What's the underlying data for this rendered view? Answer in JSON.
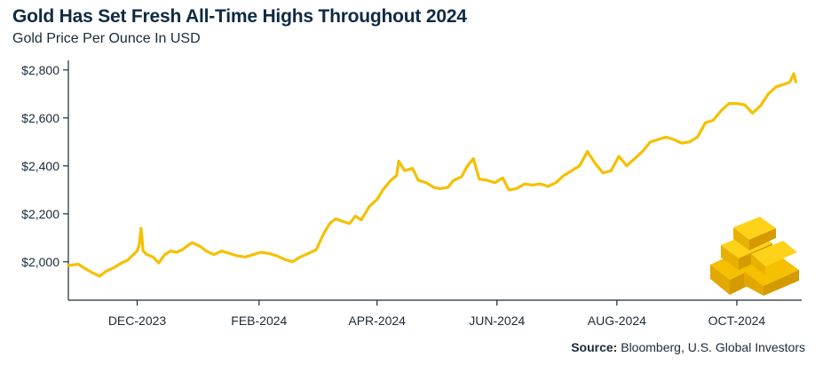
{
  "header": {
    "title": "Gold Has Set Fresh All-Time Highs Throughout 2024",
    "subtitle": "Gold Price Per Ounce In USD"
  },
  "footer": {
    "source_label": "Source:",
    "source_text": "Bloomberg, U.S. Global Investors"
  },
  "colors": {
    "line": "#f5c000",
    "axis": "#1b2a38",
    "title": "#0e2a45",
    "gold_bar": "#f5c000",
    "gold_bar_shade": "#e0a800"
  },
  "decoration": {
    "icon": "gold-bars-icon"
  },
  "chart_data": {
    "type": "line",
    "title": "Gold Has Set Fresh All-Time Highs Throughout 2024",
    "subtitle": "Gold Price Per Ounce In USD",
    "xlabel": "",
    "ylabel": "",
    "x_ticks": [
      "DEC-2023",
      "FEB-2024",
      "APR-2024",
      "JUN-2024",
      "AUG-2024",
      "OCT-2024"
    ],
    "y_ticks": [
      {
        "value": 2000,
        "label": "$2,000"
      },
      {
        "value": 2200,
        "label": "$2,200"
      },
      {
        "value": 2400,
        "label": "$2,400"
      },
      {
        "value": 2600,
        "label": "$2,600"
      },
      {
        "value": 2800,
        "label": "$2,800"
      }
    ],
    "xlim": [
      "2023-10-27",
      "2024-11-03"
    ],
    "ylim": [
      1840,
      2840
    ],
    "grid": false,
    "legend": "none",
    "series": [
      {
        "values": [
          [
            "2023-10-27",
            1985
          ],
          [
            "2023-11-01",
            1990
          ],
          [
            "2023-11-04",
            1975
          ],
          [
            "2023-11-08",
            1955
          ],
          [
            "2023-11-12",
            1940
          ],
          [
            "2023-11-15",
            1960
          ],
          [
            "2023-11-19",
            1975
          ],
          [
            "2023-11-23",
            1995
          ],
          [
            "2023-11-26",
            2005
          ],
          [
            "2023-11-29",
            2030
          ],
          [
            "2023-12-01",
            2045
          ],
          [
            "2023-12-02",
            2070
          ],
          [
            "2023-12-03",
            2140
          ],
          [
            "2023-12-04",
            2045
          ],
          [
            "2023-12-06",
            2030
          ],
          [
            "2023-12-09",
            2020
          ],
          [
            "2023-12-12",
            1995
          ],
          [
            "2023-12-15",
            2030
          ],
          [
            "2023-12-18",
            2045
          ],
          [
            "2023-12-21",
            2040
          ],
          [
            "2023-12-24",
            2050
          ],
          [
            "2023-12-27",
            2070
          ],
          [
            "2023-12-29",
            2080
          ],
          [
            "2024-01-02",
            2065
          ],
          [
            "2024-01-05",
            2045
          ],
          [
            "2024-01-09",
            2030
          ],
          [
            "2024-01-13",
            2045
          ],
          [
            "2024-01-17",
            2035
          ],
          [
            "2024-01-21",
            2025
          ],
          [
            "2024-01-25",
            2020
          ],
          [
            "2024-01-29",
            2030
          ],
          [
            "2024-02-02",
            2040
          ],
          [
            "2024-02-06",
            2035
          ],
          [
            "2024-02-10",
            2025
          ],
          [
            "2024-02-14",
            2010
          ],
          [
            "2024-02-18",
            2000
          ],
          [
            "2024-02-22",
            2020
          ],
          [
            "2024-02-26",
            2035
          ],
          [
            "2024-03-01",
            2050
          ],
          [
            "2024-03-05",
            2120
          ],
          [
            "2024-03-08",
            2160
          ],
          [
            "2024-03-11",
            2180
          ],
          [
            "2024-03-14",
            2170
          ],
          [
            "2024-03-18",
            2160
          ],
          [
            "2024-03-21",
            2190
          ],
          [
            "2024-03-24",
            2175
          ],
          [
            "2024-03-28",
            2230
          ],
          [
            "2024-04-01",
            2260
          ],
          [
            "2024-04-04",
            2300
          ],
          [
            "2024-04-08",
            2340
          ],
          [
            "2024-04-11",
            2360
          ],
          [
            "2024-04-12",
            2420
          ],
          [
            "2024-04-15",
            2380
          ],
          [
            "2024-04-19",
            2390
          ],
          [
            "2024-04-22",
            2340
          ],
          [
            "2024-04-26",
            2330
          ],
          [
            "2024-04-30",
            2310
          ],
          [
            "2024-05-03",
            2305
          ],
          [
            "2024-05-07",
            2310
          ],
          [
            "2024-05-10",
            2340
          ],
          [
            "2024-05-14",
            2355
          ],
          [
            "2024-05-17",
            2400
          ],
          [
            "2024-05-20",
            2430
          ],
          [
            "2024-05-23",
            2345
          ],
          [
            "2024-05-27",
            2340
          ],
          [
            "2024-05-31",
            2330
          ],
          [
            "2024-06-04",
            2350
          ],
          [
            "2024-06-07",
            2300
          ],
          [
            "2024-06-11",
            2305
          ],
          [
            "2024-06-15",
            2325
          ],
          [
            "2024-06-19",
            2320
          ],
          [
            "2024-06-23",
            2325
          ],
          [
            "2024-06-27",
            2315
          ],
          [
            "2024-07-01",
            2330
          ],
          [
            "2024-07-05",
            2360
          ],
          [
            "2024-07-09",
            2380
          ],
          [
            "2024-07-13",
            2400
          ],
          [
            "2024-07-17",
            2460
          ],
          [
            "2024-07-21",
            2410
          ],
          [
            "2024-07-25",
            2370
          ],
          [
            "2024-07-29",
            2380
          ],
          [
            "2024-08-02",
            2440
          ],
          [
            "2024-08-06",
            2400
          ],
          [
            "2024-08-10",
            2430
          ],
          [
            "2024-08-14",
            2460
          ],
          [
            "2024-08-18",
            2500
          ],
          [
            "2024-08-22",
            2510
          ],
          [
            "2024-08-26",
            2520
          ],
          [
            "2024-08-30",
            2510
          ],
          [
            "2024-09-03",
            2495
          ],
          [
            "2024-09-07",
            2500
          ],
          [
            "2024-09-11",
            2520
          ],
          [
            "2024-09-15",
            2580
          ],
          [
            "2024-09-19",
            2590
          ],
          [
            "2024-09-23",
            2630
          ],
          [
            "2024-09-27",
            2660
          ],
          [
            "2024-10-01",
            2660
          ],
          [
            "2024-10-05",
            2655
          ],
          [
            "2024-10-09",
            2620
          ],
          [
            "2024-10-13",
            2650
          ],
          [
            "2024-10-17",
            2700
          ],
          [
            "2024-10-21",
            2730
          ],
          [
            "2024-10-25",
            2740
          ],
          [
            "2024-10-28",
            2750
          ],
          [
            "2024-10-30",
            2785
          ],
          [
            "2024-10-31",
            2750
          ]
        ]
      }
    ]
  }
}
